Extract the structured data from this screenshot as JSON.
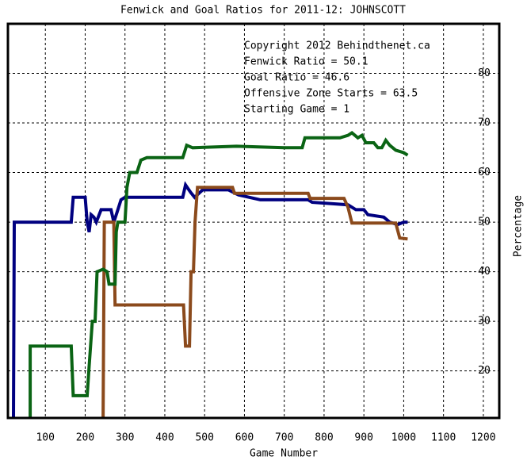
{
  "chart_data": {
    "type": "line",
    "title": "Fenwick and Goal Ratios for 2011-12: JOHNSCOTT",
    "x_label": "Game Number",
    "y_label": "Percentage",
    "xlim": [
      6,
      1240
    ],
    "ylim": [
      10.5,
      90
    ],
    "xticks": [
      100,
      200,
      300,
      400,
      500,
      600,
      700,
      800,
      900,
      1000,
      1100,
      1200
    ],
    "yticks": [
      20,
      30,
      40,
      50,
      60,
      70,
      80
    ],
    "grid": true,
    "annotations": [
      {
        "text": "Copyright 2012 Behindthenet.ca",
        "color": "#000000"
      },
      {
        "text": "Fenwick Ratio = 50.1",
        "color": "#000080"
      },
      {
        "text": "Goal Ratio = 46.6",
        "color": "#8b4a1c"
      },
      {
        "text": "Offensive Zone Starts = 63.5",
        "color": "#0a6414"
      },
      {
        "text": "Starting Game = 1",
        "color": "#000000"
      }
    ],
    "series": [
      {
        "color": "#000080",
        "x": [
          20,
          22,
          165,
          170,
          200,
          205,
          210,
          215,
          222,
          228,
          240,
          265,
          272,
          280,
          290,
          300,
          445,
          452,
          465,
          475,
          495,
          560,
          585,
          640,
          760,
          770,
          860,
          880,
          900,
          910,
          950,
          965,
          985,
          1000,
          1010
        ],
        "values": [
          10.5,
          50,
          50,
          55,
          55,
          50,
          48,
          51.5,
          51,
          50,
          52.5,
          52.5,
          50,
          52,
          54.5,
          55,
          55,
          57.5,
          56,
          55,
          56.5,
          56.5,
          55.5,
          54.5,
          54.5,
          54,
          53.5,
          52.5,
          52.5,
          51.5,
          51,
          50,
          49.5,
          50,
          50
        ]
      },
      {
        "color": "#8b4a1c",
        "x": [
          245,
          248,
          272,
          275,
          447,
          452,
          462,
          466,
          472,
          476,
          482,
          570,
          575,
          760,
          765,
          850,
          860,
          870,
          980,
          990,
          1010
        ],
        "values": [
          10.5,
          50,
          50,
          33.3,
          33.3,
          25,
          25,
          40,
          40,
          50,
          57,
          57,
          55.8,
          55.8,
          54.8,
          54.8,
          53,
          49.8,
          49.8,
          46.8,
          46.6
        ]
      },
      {
        "color": "#0a6414",
        "x": [
          62,
          62,
          165,
          170,
          205,
          210,
          218,
          225,
          230,
          245,
          255,
          260,
          275,
          278,
          282,
          300,
          305,
          312,
          330,
          340,
          355,
          445,
          455,
          470,
          580,
          700,
          745,
          752,
          840,
          860,
          870,
          885,
          895,
          905,
          925,
          935,
          945,
          955,
          965,
          980,
          1000,
          1010
        ],
        "values": [
          10.5,
          25,
          25,
          15,
          15,
          21,
          30,
          30,
          40,
          40.5,
          40,
          37.5,
          37.5,
          48,
          50,
          50,
          57,
          60,
          60,
          62.5,
          63,
          63,
          65.5,
          65,
          65.3,
          65,
          65,
          67,
          67,
          67.5,
          68,
          67,
          67.5,
          66,
          66,
          65,
          65,
          66.5,
          65.5,
          64.5,
          64,
          63.5
        ]
      }
    ]
  }
}
